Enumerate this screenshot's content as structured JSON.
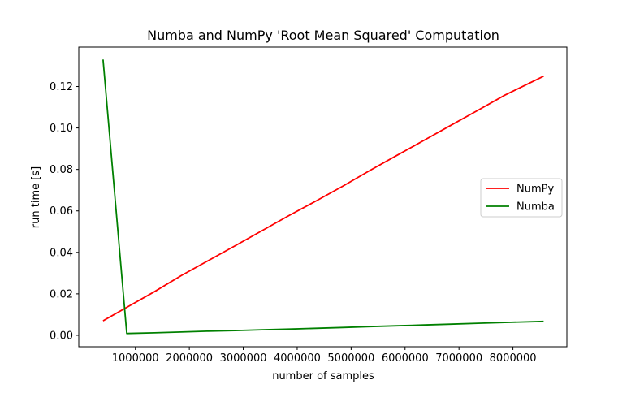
{
  "chart_data": {
    "type": "line",
    "title": "Numba and NumPy 'Root Mean Squared' Computation",
    "xlabel": "number of samples",
    "ylabel": "run time [s]",
    "xlim": [
      -50000,
      9000000
    ],
    "ylim": [
      -0.0055,
      0.139
    ],
    "x_ticks": [
      1000000,
      2000000,
      3000000,
      4000000,
      5000000,
      6000000,
      7000000,
      8000000
    ],
    "x_tick_labels": [
      "1000000",
      "2000000",
      "3000000",
      "4000000",
      "5000000",
      "6000000",
      "7000000",
      "8000000"
    ],
    "y_ticks": [
      0.0,
      0.02,
      0.04,
      0.06,
      0.08,
      0.1,
      0.12
    ],
    "y_tick_labels": [
      "0.00",
      "0.02",
      "0.04",
      "0.06",
      "0.08",
      "0.10",
      "0.12"
    ],
    "grid": false,
    "legend_position": "right",
    "x": [
      400000,
      840000,
      1350000,
      1850000,
      2350000,
      2850000,
      3350000,
      3850000,
      4350000,
      4850000,
      5350000,
      5850000,
      6350000,
      6850000,
      7350000,
      7850000,
      8570000
    ],
    "series": [
      {
        "name": "NumPy",
        "color": "#ff0000",
        "values": [
          0.007,
          0.0135,
          0.021,
          0.0288,
          0.036,
          0.0432,
          0.0505,
          0.0578,
          0.0648,
          0.072,
          0.0795,
          0.0868,
          0.094,
          0.1013,
          0.1085,
          0.1158,
          0.125
        ]
      },
      {
        "name": "Numba",
        "color": "#008000",
        "values": [
          0.133,
          0.0009,
          0.0012,
          0.0016,
          0.002,
          0.0023,
          0.0027,
          0.003,
          0.0034,
          0.0038,
          0.0042,
          0.0046,
          0.005,
          0.0054,
          0.0058,
          0.0062,
          0.0067
        ]
      }
    ]
  }
}
